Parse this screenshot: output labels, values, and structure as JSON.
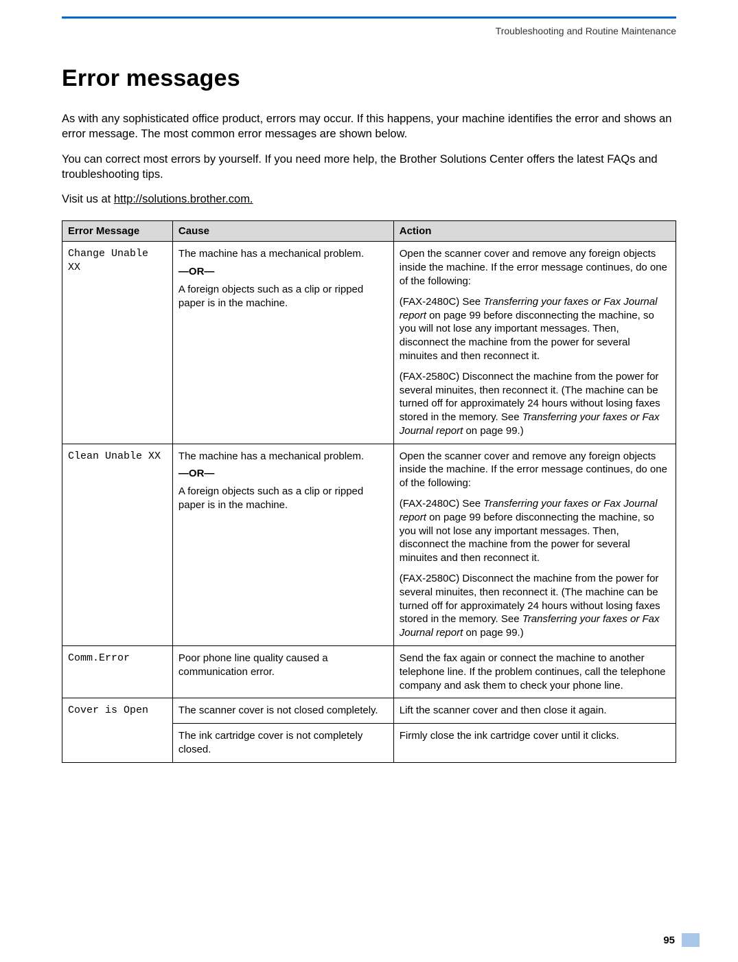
{
  "runningHead": "Troubleshooting and Routine Maintenance",
  "title": "Error messages",
  "intro": [
    "As with any sophisticated office product, errors may occur. If this happens, your machine identifies the error and shows an error message. The most common error messages are shown below.",
    "You can correct most errors by yourself. If you need more help, the Brother Solutions Center offers the latest FAQs and troubleshooting tips."
  ],
  "visit_prefix": "Visit us at ",
  "visit_link": "http://solutions.brother.com.",
  "table": {
    "headers": [
      "Error Message",
      "Cause",
      "Action"
    ],
    "col_widths_pct": [
      18,
      36,
      46
    ],
    "header_bg": "#d9d9d9",
    "border_color": "#000000",
    "rows": [
      {
        "error": "Change Unable XX",
        "cause": {
          "p1": "The machine has a mechanical problem.",
          "or": "—OR—",
          "p2": "A foreign objects such as a clip or ripped paper is in the machine."
        },
        "action": {
          "p1": "Open the scanner cover and remove any foreign objects inside the machine. If the error message continues, do one of the following:",
          "p2_pre": "(FAX-2480C) See ",
          "p2_em": "Transferring your faxes or Fax Journal report",
          "p2_post": " on page 99 before disconnecting the machine, so you will not lose any important messages. Then, disconnect the machine from the power for several minuites and then reconnect it.",
          "p3_pre": "(FAX-2580C) Disconnect the machine from the power for several minuites, then reconnect it. (The machine can be turned off for approximately 24 hours without losing faxes stored in the memory. See ",
          "p3_em": "Transferring your faxes or Fax Journal report",
          "p3_post": " on page 99.)"
        }
      },
      {
        "error": "Clean Unable XX",
        "cause": {
          "p1": "The machine has a mechanical problem.",
          "or": "—OR—",
          "p2": "A foreign objects such as a clip or ripped paper is in the machine."
        },
        "action": {
          "p1": "Open the scanner cover and remove any foreign objects inside the machine. If the error message continues, do one of the following:",
          "p2_pre": "(FAX-2480C) See ",
          "p2_em": "Transferring your faxes or Fax Journal report",
          "p2_post": " on page 99 before disconnecting the machine, so you will not lose any important messages. Then, disconnect the machine from the power for several minuites and then reconnect it.",
          "p3_pre": "(FAX-2580C) Disconnect the machine from the power for several minuites, then reconnect it. (The machine can be turned off for approximately 24 hours without losing faxes stored in the memory. See ",
          "p3_em": "Transferring your faxes or Fax Journal report",
          "p3_post": " on page 99.)"
        }
      },
      {
        "error": "Comm.Error",
        "cause_simple": "Poor phone line quality caused a communication error.",
        "action_simple": "Send the fax again or connect the machine to another telephone line. If the problem continues, call the telephone company and ask them to check your phone line."
      },
      {
        "error": "Cover is Open",
        "sub": [
          {
            "cause": "The scanner cover is not closed completely.",
            "action": "Lift the scanner cover and then close it again."
          },
          {
            "cause": "The ink cartridge cover is not completely closed.",
            "action": "Firmly close the ink cartridge cover until it clicks."
          }
        ]
      }
    ]
  },
  "pageNumber": "95",
  "colors": {
    "rule": "#0066d4",
    "tab": "#a9c7e8"
  }
}
